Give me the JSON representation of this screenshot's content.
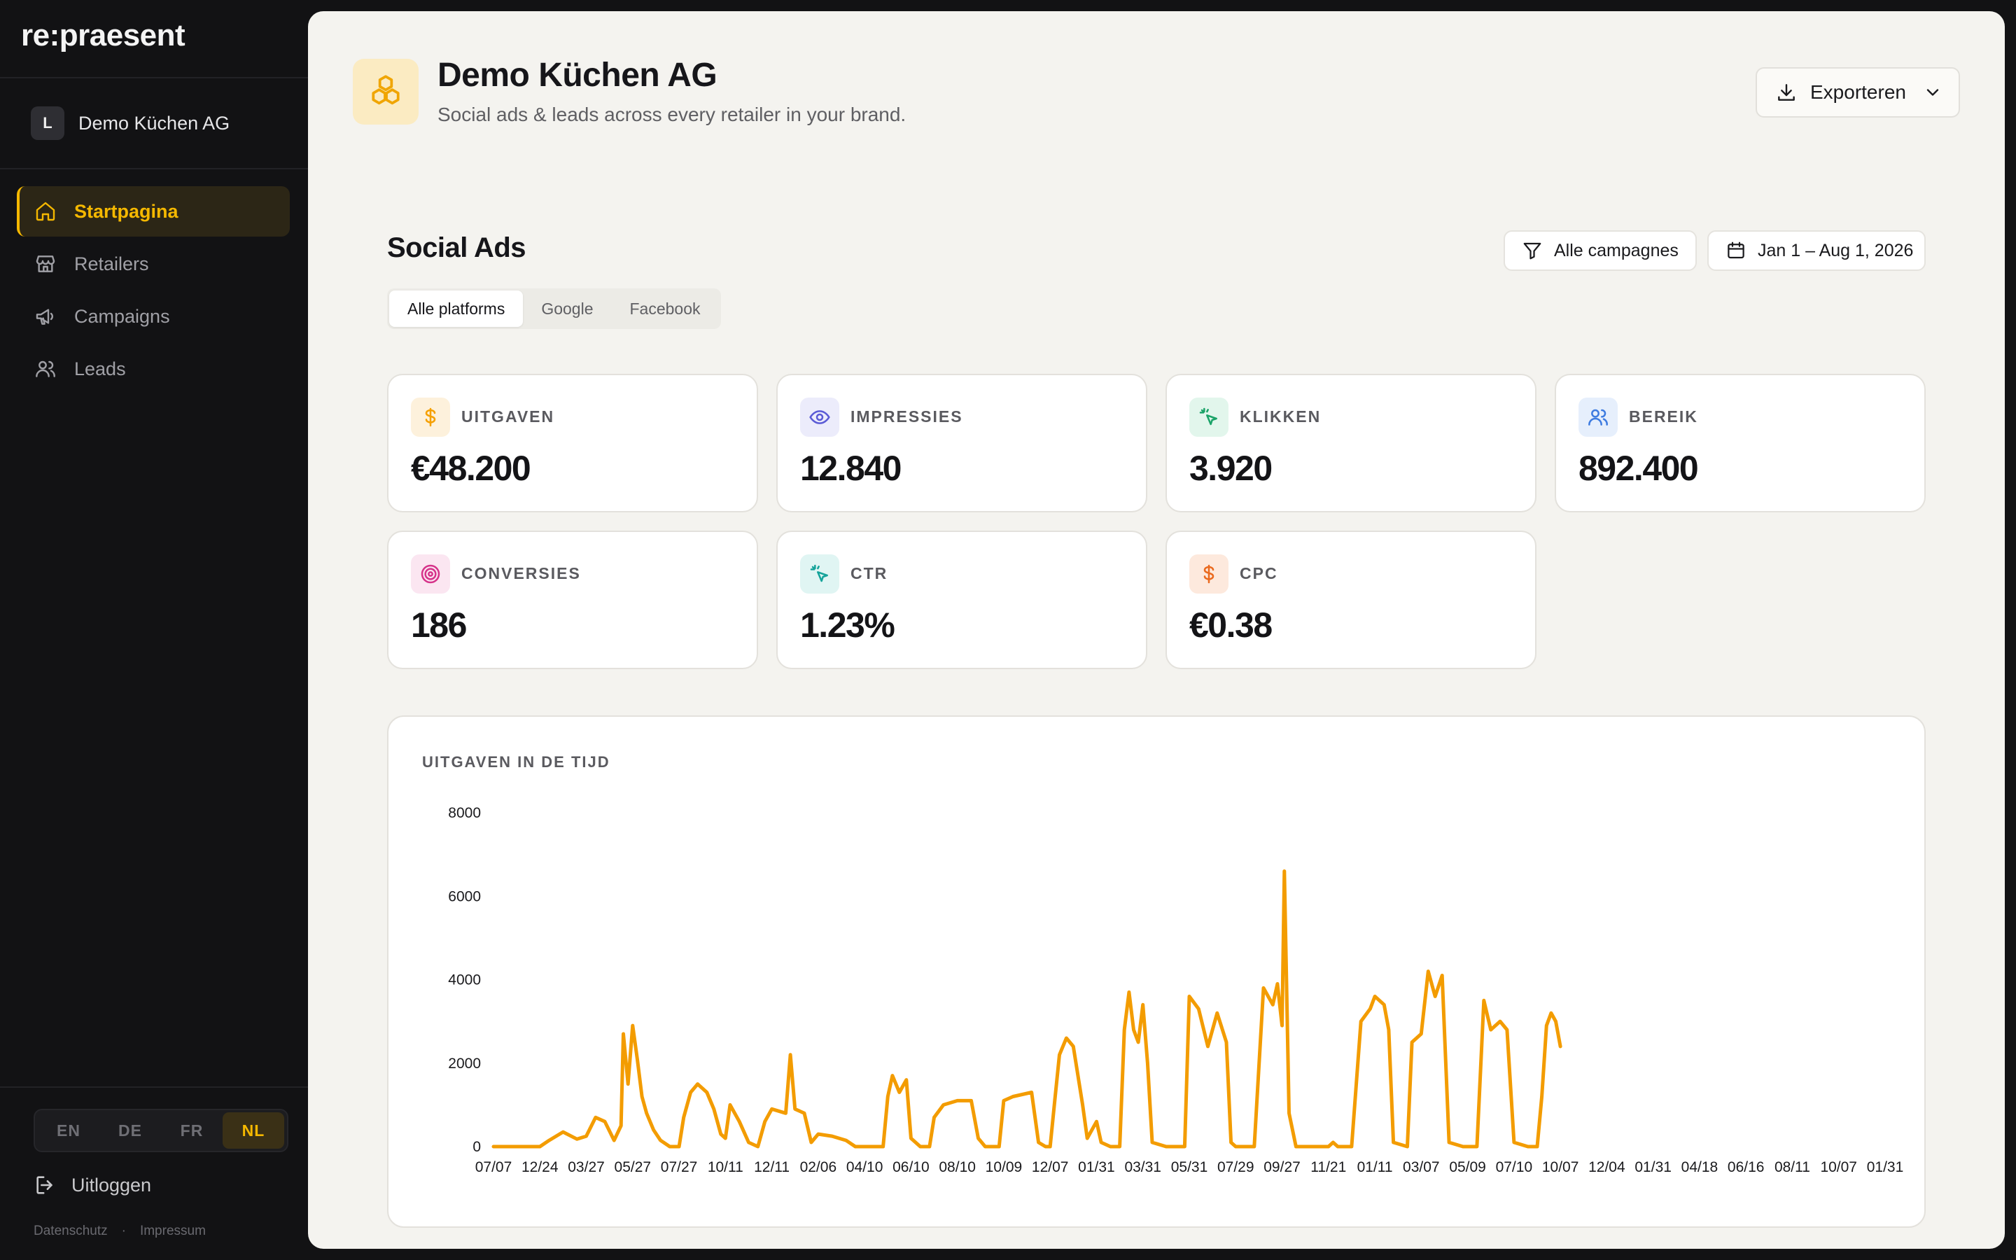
{
  "app": {
    "logo": "re:praesent"
  },
  "org": {
    "initial": "L",
    "name": "Demo Küchen AG"
  },
  "nav": [
    {
      "label": "Startpagina",
      "icon": "home-icon",
      "active": true
    },
    {
      "label": "Retailers",
      "icon": "store-icon",
      "active": false
    },
    {
      "label": "Campaigns",
      "icon": "megaphone-icon",
      "active": false
    },
    {
      "label": "Leads",
      "icon": "users-icon",
      "active": false
    }
  ],
  "languages": [
    {
      "code": "EN",
      "active": false
    },
    {
      "code": "DE",
      "active": false
    },
    {
      "code": "FR",
      "active": false
    },
    {
      "code": "NL",
      "active": true
    }
  ],
  "logout_label": "Uitloggen",
  "footer": {
    "privacy": "Datenschutz",
    "separator": "·",
    "imprint": "Impressum"
  },
  "header": {
    "title": "Demo Küchen AG",
    "subtitle": "Social ads & leads across every retailer in your brand.",
    "export_label": "Exporteren",
    "brand_icon": "cubes-icon"
  },
  "section": {
    "title": "Social Ads",
    "campaign_filter": "Alle campagnes",
    "date_range": "Jan 1 – Aug 1, 2026",
    "tabs": [
      {
        "label": "Alle platforms",
        "active": true
      },
      {
        "label": "Google",
        "active": false
      },
      {
        "label": "Facebook",
        "active": false
      }
    ]
  },
  "kpis": [
    {
      "label": "UITGAVEN",
      "value": "€48.200",
      "icon": "dollar-icon",
      "color": "#f5a000",
      "bg": "#fdf1dc"
    },
    {
      "label": "IMPRESSIES",
      "value": "12.840",
      "icon": "eye-icon",
      "color": "#5b5bd6",
      "bg": "#ececfb"
    },
    {
      "label": "KLIKKEN",
      "value": "3.920",
      "icon": "cursor-click-icon",
      "color": "#1aa368",
      "bg": "#e2f6ec"
    },
    {
      "label": "BEREIK",
      "value": "892.400",
      "icon": "users-icon",
      "color": "#3d7be0",
      "bg": "#e6effc"
    },
    {
      "label": "CONVERSIES",
      "value": "186",
      "icon": "target-icon",
      "color": "#d6338a",
      "bg": "#fbe6f1"
    },
    {
      "label": "CTR",
      "value": "1.23%",
      "icon": "cursor-click-icon",
      "color": "#14a39a",
      "bg": "#e0f5f3"
    },
    {
      "label": "CPC",
      "value": "€0.38",
      "icon": "dollar-icon",
      "color": "#ea6a1f",
      "bg": "#fde9dd"
    }
  ],
  "chart_data": {
    "type": "line",
    "title": "UITGAVEN IN DE TIJD",
    "color": "#f39c00",
    "ylim": [
      0,
      8000
    ],
    "yticks": [
      0,
      2000,
      4000,
      6000,
      8000
    ],
    "xticks": [
      "07/07",
      "12/24",
      "03/27",
      "05/27",
      "07/27",
      "10/11",
      "12/11",
      "02/06",
      "04/10",
      "06/10",
      "08/10",
      "10/09",
      "12/07",
      "01/31",
      "03/31",
      "05/31",
      "07/29",
      "09/27",
      "11/21",
      "01/11",
      "03/07",
      "05/09",
      "07/10",
      "10/07",
      "12/04",
      "01/31",
      "04/18",
      "06/16",
      "08/11",
      "10/07",
      "01/31"
    ],
    "series": [
      {
        "points": [
          [
            0,
            0
          ],
          [
            1,
            0
          ],
          [
            1.2,
            150
          ],
          [
            1.5,
            350
          ],
          [
            1.8,
            180
          ],
          [
            2,
            250
          ],
          [
            2.2,
            700
          ],
          [
            2.4,
            600
          ],
          [
            2.6,
            150
          ],
          [
            2.75,
            500
          ],
          [
            2.8,
            2700
          ],
          [
            2.9,
            1500
          ],
          [
            3,
            2900
          ],
          [
            3.1,
            2100
          ],
          [
            3.2,
            1200
          ],
          [
            3.3,
            800
          ],
          [
            3.45,
            400
          ],
          [
            3.6,
            150
          ],
          [
            3.8,
            0
          ],
          [
            4,
            0
          ],
          [
            4.1,
            700
          ],
          [
            4.25,
            1300
          ],
          [
            4.4,
            1500
          ],
          [
            4.6,
            1300
          ],
          [
            4.75,
            900
          ],
          [
            4.9,
            300
          ],
          [
            5,
            200
          ],
          [
            5.1,
            1000
          ],
          [
            5.3,
            600
          ],
          [
            5.5,
            100
          ],
          [
            5.7,
            0
          ],
          [
            5.85,
            600
          ],
          [
            6,
            900
          ],
          [
            6.3,
            800
          ],
          [
            6.4,
            2200
          ],
          [
            6.5,
            900
          ],
          [
            6.7,
            800
          ],
          [
            6.85,
            100
          ],
          [
            7,
            300
          ],
          [
            7.3,
            250
          ],
          [
            7.6,
            150
          ],
          [
            7.8,
            0
          ],
          [
            8,
            0
          ],
          [
            8.4,
            0
          ],
          [
            8.5,
            1200
          ],
          [
            8.6,
            1700
          ],
          [
            8.75,
            1300
          ],
          [
            8.9,
            1600
          ],
          [
            9,
            200
          ],
          [
            9.2,
            0
          ],
          [
            9.4,
            0
          ],
          [
            9.5,
            700
          ],
          [
            9.7,
            1000
          ],
          [
            10,
            1100
          ],
          [
            10.3,
            1100
          ],
          [
            10.45,
            200
          ],
          [
            10.6,
            0
          ],
          [
            10.9,
            0
          ],
          [
            11,
            1100
          ],
          [
            11.2,
            1200
          ],
          [
            11.6,
            1300
          ],
          [
            11.75,
            100
          ],
          [
            11.9,
            0
          ],
          [
            12,
            0
          ],
          [
            12.1,
            1100
          ],
          [
            12.2,
            2200
          ],
          [
            12.35,
            2600
          ],
          [
            12.5,
            2400
          ],
          [
            12.7,
            1000
          ],
          [
            12.8,
            200
          ],
          [
            13,
            600
          ],
          [
            13.1,
            100
          ],
          [
            13.3,
            0
          ],
          [
            13.5,
            0
          ],
          [
            13.6,
            2800
          ],
          [
            13.7,
            3700
          ],
          [
            13.8,
            2800
          ],
          [
            13.9,
            2500
          ],
          [
            14,
            3400
          ],
          [
            14.1,
            2000
          ],
          [
            14.2,
            100
          ],
          [
            14.5,
            0
          ],
          [
            14.9,
            0
          ],
          [
            15,
            3600
          ],
          [
            15.2,
            3300
          ],
          [
            15.4,
            2400
          ],
          [
            15.6,
            3200
          ],
          [
            15.8,
            2500
          ],
          [
            15.9,
            100
          ],
          [
            16,
            0
          ],
          [
            16.4,
            0
          ],
          [
            16.6,
            3800
          ],
          [
            16.8,
            3400
          ],
          [
            16.9,
            3900
          ],
          [
            17,
            2900
          ],
          [
            17.05,
            6600
          ],
          [
            17.15,
            800
          ],
          [
            17.3,
            0
          ],
          [
            17.5,
            0
          ],
          [
            18,
            0
          ],
          [
            18.1,
            100
          ],
          [
            18.2,
            0
          ],
          [
            18.5,
            0
          ],
          [
            18.7,
            3000
          ],
          [
            18.9,
            3300
          ],
          [
            19,
            3600
          ],
          [
            19.2,
            3400
          ],
          [
            19.3,
            2800
          ],
          [
            19.4,
            100
          ],
          [
            19.7,
            0
          ],
          [
            19.8,
            2500
          ],
          [
            20,
            2700
          ],
          [
            20.15,
            4200
          ],
          [
            20.3,
            3600
          ],
          [
            20.45,
            4100
          ],
          [
            20.6,
            100
          ],
          [
            20.9,
            0
          ],
          [
            21,
            0
          ],
          [
            21.2,
            0
          ],
          [
            21.35,
            3500
          ],
          [
            21.5,
            2800
          ],
          [
            21.7,
            3000
          ],
          [
            21.85,
            2800
          ],
          [
            22,
            100
          ],
          [
            22.3,
            0
          ],
          [
            22.5,
            0
          ],
          [
            22.6,
            1200
          ],
          [
            22.7,
            2900
          ],
          [
            22.8,
            3200
          ],
          [
            22.9,
            3000
          ],
          [
            23,
            2400
          ]
        ]
      }
    ]
  }
}
